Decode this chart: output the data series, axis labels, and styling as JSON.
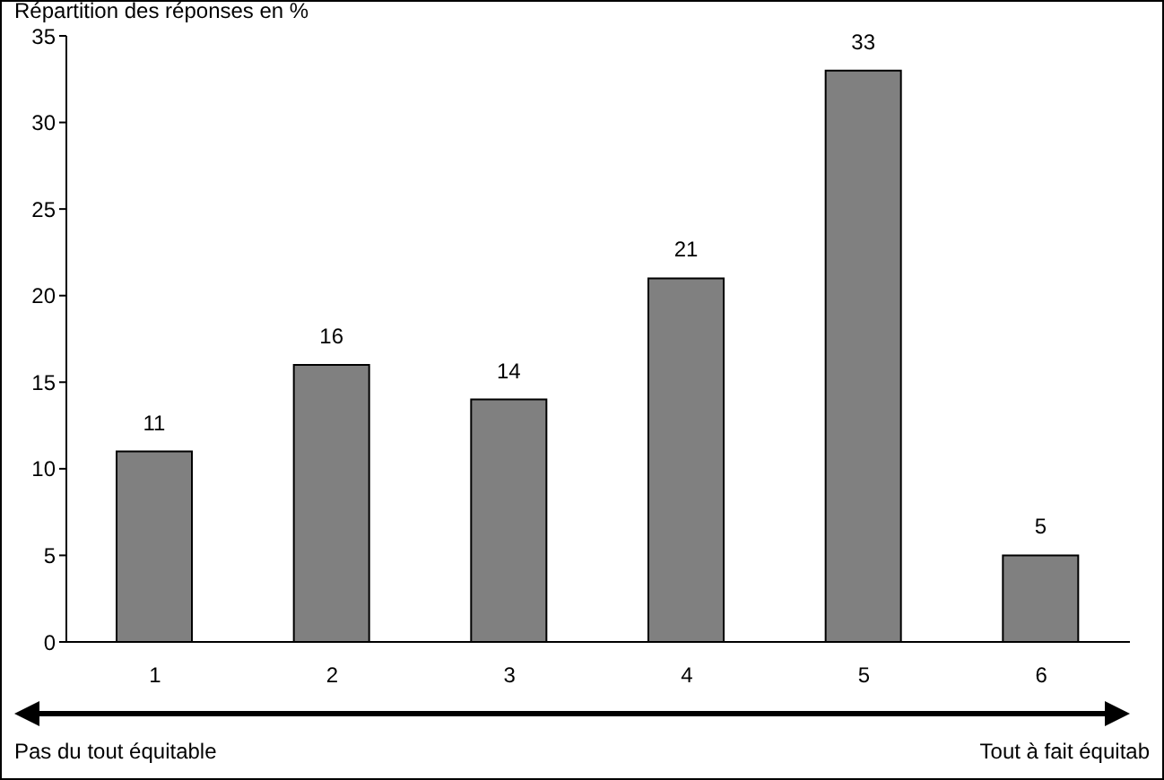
{
  "chart_data": {
    "type": "bar",
    "ylabel": "Répartition des réponses en %",
    "categories": [
      "1",
      "2",
      "3",
      "4",
      "5",
      "6"
    ],
    "values": [
      11,
      16,
      14,
      21,
      33,
      5
    ],
    "color": "#808080",
    "ylim": [
      0,
      35
    ],
    "yticks": [
      0,
      5,
      10,
      15,
      20,
      25,
      30,
      35
    ],
    "data_labels": true,
    "annotations": [
      "Pas du tout équitable",
      "Tout à fait équitab"
    ]
  }
}
